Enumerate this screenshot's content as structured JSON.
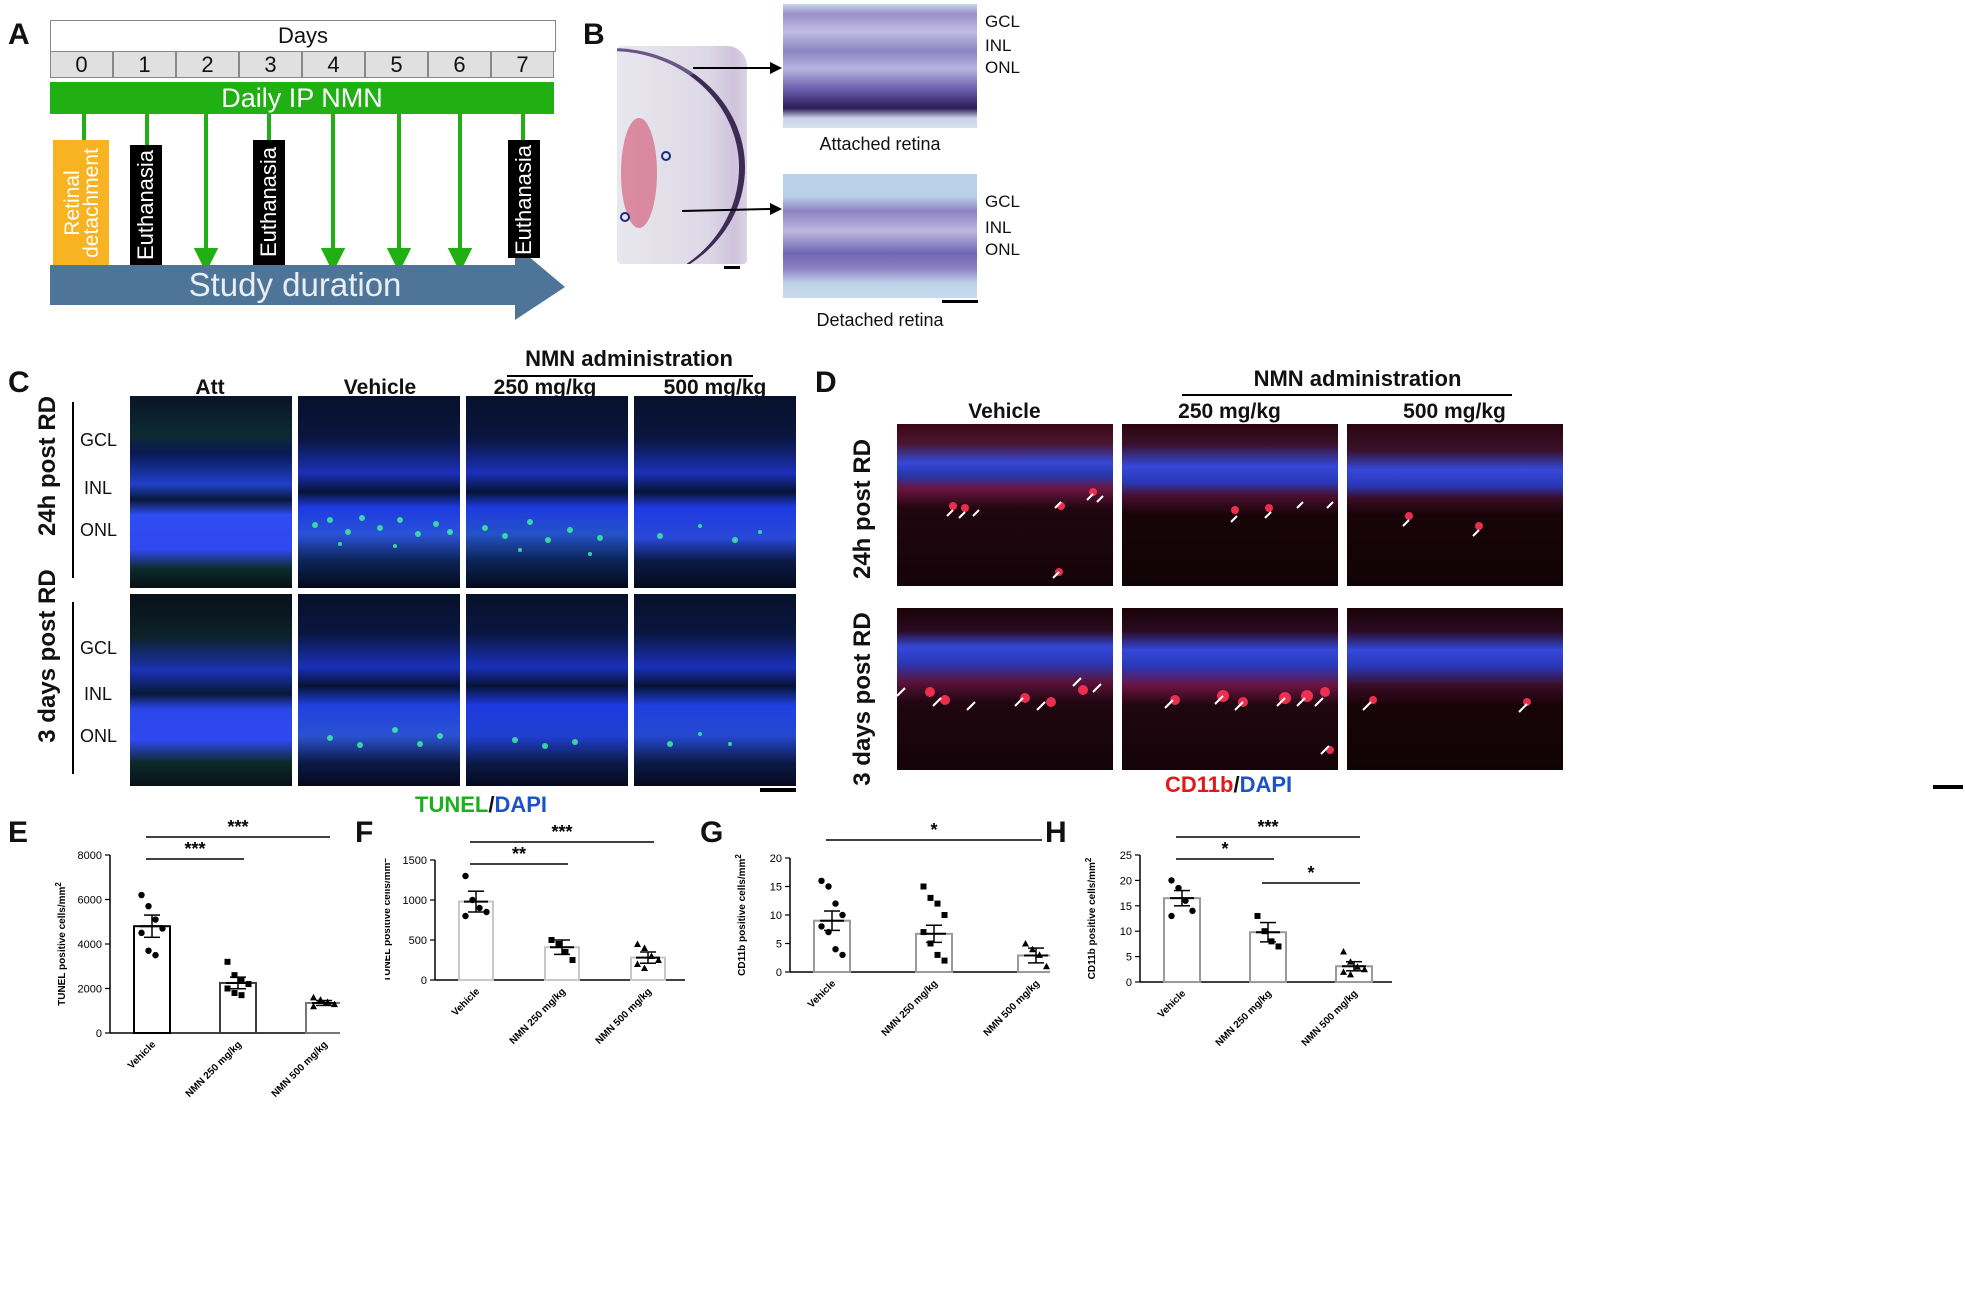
{
  "panel_labels": {
    "A": "A",
    "B": "B",
    "C": "C",
    "D": "D",
    "E": "E",
    "F": "F",
    "G": "G",
    "H": "H"
  },
  "panelA": {
    "days_header": "Days",
    "days": [
      "0",
      "1",
      "2",
      "3",
      "4",
      "5",
      "6",
      "7"
    ],
    "treatment_bar": "Daily IP NMN",
    "retinal_detachment": "Retinal detachment",
    "euthanasia": "Euthanasia",
    "study_duration": "Study duration",
    "colors": {
      "green": "#21b014",
      "orange": "#f7b321",
      "arrow_blue": "#4e7597",
      "black": "#000000"
    }
  },
  "panelB": {
    "layers_top": [
      "GCL",
      "INL",
      "ONL"
    ],
    "layers_bottom": [
      "GCL",
      "INL",
      "ONL"
    ],
    "caption_top": "Attached retina",
    "caption_bottom": "Detached retina"
  },
  "panelC": {
    "group_header": "NMN administration",
    "columns": [
      "Att",
      "Vehicle",
      "250 mg/kg",
      "500 mg/kg"
    ],
    "rows": [
      "24h post RD",
      "3 days post RD"
    ],
    "layers": [
      "GCL",
      "INL",
      "ONL"
    ],
    "stain_green": "TUNEL",
    "stain_sep": "/",
    "stain_blue": "DAPI"
  },
  "panelD": {
    "group_header": "NMN administration",
    "columns": [
      "Vehicle",
      "250 mg/kg",
      "500 mg/kg"
    ],
    "rows": [
      "24h post RD",
      "3 days post RD"
    ],
    "stain_red": "CD11b",
    "stain_sep": "/",
    "stain_blue": "DAPI"
  },
  "chart_data": [
    {
      "id": "E",
      "type": "bar",
      "categories": [
        "Vehicle",
        "NMN 250 mg/kg",
        "NMN 500 mg/kg"
      ],
      "values": [
        4800,
        2250,
        1350
      ],
      "errors": [
        500,
        260,
        110
      ],
      "ylabel": "TUNEL positive cells/mm",
      "ylabel_sup": "2",
      "ylim": [
        0,
        8000
      ],
      "yticks": [
        "0",
        "2000",
        "4000",
        "6000",
        "8000"
      ],
      "points": [
        [
          6200,
          5700,
          5100,
          4700,
          4500,
          3700,
          3500
        ],
        [
          3200,
          2600,
          2400,
          2200,
          2000,
          1800,
          1700
        ],
        [
          1600,
          1500,
          1400,
          1300,
          1200
        ]
      ],
      "markers": [
        "circle",
        "square",
        "triangle"
      ],
      "bar_colors": [
        "#000000",
        "#3c3c3c",
        "#777777"
      ],
      "significance": [
        {
          "from": 0,
          "to": 1,
          "label": "***"
        },
        {
          "from": 0,
          "to": 2,
          "label": "***"
        }
      ]
    },
    {
      "id": "F",
      "type": "bar",
      "categories": [
        "Vehicle",
        "NMN 250 mg/kg",
        "NMN 500 mg/kg"
      ],
      "values": [
        980,
        410,
        280
      ],
      "errors": [
        130,
        90,
        70
      ],
      "ylabel": "TUNEL positive cells/mm",
      "ylabel_sup": "2",
      "ylim": [
        0,
        1500
      ],
      "yticks": [
        "0",
        "500",
        "1000",
        "1500"
      ],
      "points": [
        [
          1300,
          1000,
          900,
          850,
          800
        ],
        [
          500,
          450,
          350,
          250
        ],
        [
          450,
          400,
          300,
          250,
          200,
          150
        ]
      ],
      "markers": [
        "circle",
        "square",
        "triangle"
      ],
      "bar_colors": [
        "#c8c8c8",
        "#c8c8c8",
        "#c8c8c8"
      ],
      "significance": [
        {
          "from": 0,
          "to": 1,
          "label": "**"
        },
        {
          "from": 0,
          "to": 2,
          "label": "***"
        }
      ]
    },
    {
      "id": "G",
      "type": "bar",
      "categories": [
        "Vehicle",
        "NMN 250 mg/kg",
        "NMN 500 mg/kg"
      ],
      "values": [
        9,
        6.7,
        2.9
      ],
      "errors": [
        1.7,
        1.5,
        1.3
      ],
      "ylabel": "CD11b positive cells/mm",
      "ylabel_sup": "2",
      "ylim": [
        0,
        20
      ],
      "yticks": [
        "0",
        "5",
        "10",
        "15",
        "20"
      ],
      "points": [
        [
          16,
          15,
          12,
          10,
          8,
          7,
          4,
          3
        ],
        [
          15,
          13,
          12,
          10,
          7,
          5,
          3,
          2
        ],
        [
          5,
          4,
          3,
          1
        ]
      ],
      "markers": [
        "circle",
        "square",
        "triangle"
      ],
      "bar_colors": [
        "#9a9a9a",
        "#9a9a9a",
        "#9a9a9a"
      ],
      "significance": [
        {
          "from": 0,
          "to": 2,
          "label": "*"
        }
      ]
    },
    {
      "id": "H",
      "type": "bar",
      "categories": [
        "Vehicle",
        "NMN 250 mg/kg",
        "NMN 500 mg/kg"
      ],
      "values": [
        16.5,
        9.8,
        3.1
      ],
      "errors": [
        1.5,
        1.9,
        0.9
      ],
      "ylabel": "CD11b positive cells/mm",
      "ylabel_sup": "2",
      "ylim": [
        0,
        25
      ],
      "yticks": [
        "0",
        "5",
        "10",
        "15",
        "20",
        "25"
      ],
      "points": [
        [
          20,
          18.5,
          16,
          14,
          13
        ],
        [
          13,
          10,
          8,
          7
        ],
        [
          6,
          4,
          3,
          2.5,
          2,
          1.5
        ]
      ],
      "markers": [
        "circle",
        "square",
        "triangle"
      ],
      "bar_colors": [
        "#9a9a9a",
        "#9a9a9a",
        "#9a9a9a"
      ],
      "significance": [
        {
          "from": 0,
          "to": 1,
          "label": "*"
        },
        {
          "from": 0,
          "to": 2,
          "label": "***"
        },
        {
          "from": 1,
          "to": 2,
          "label": "*"
        }
      ]
    }
  ]
}
